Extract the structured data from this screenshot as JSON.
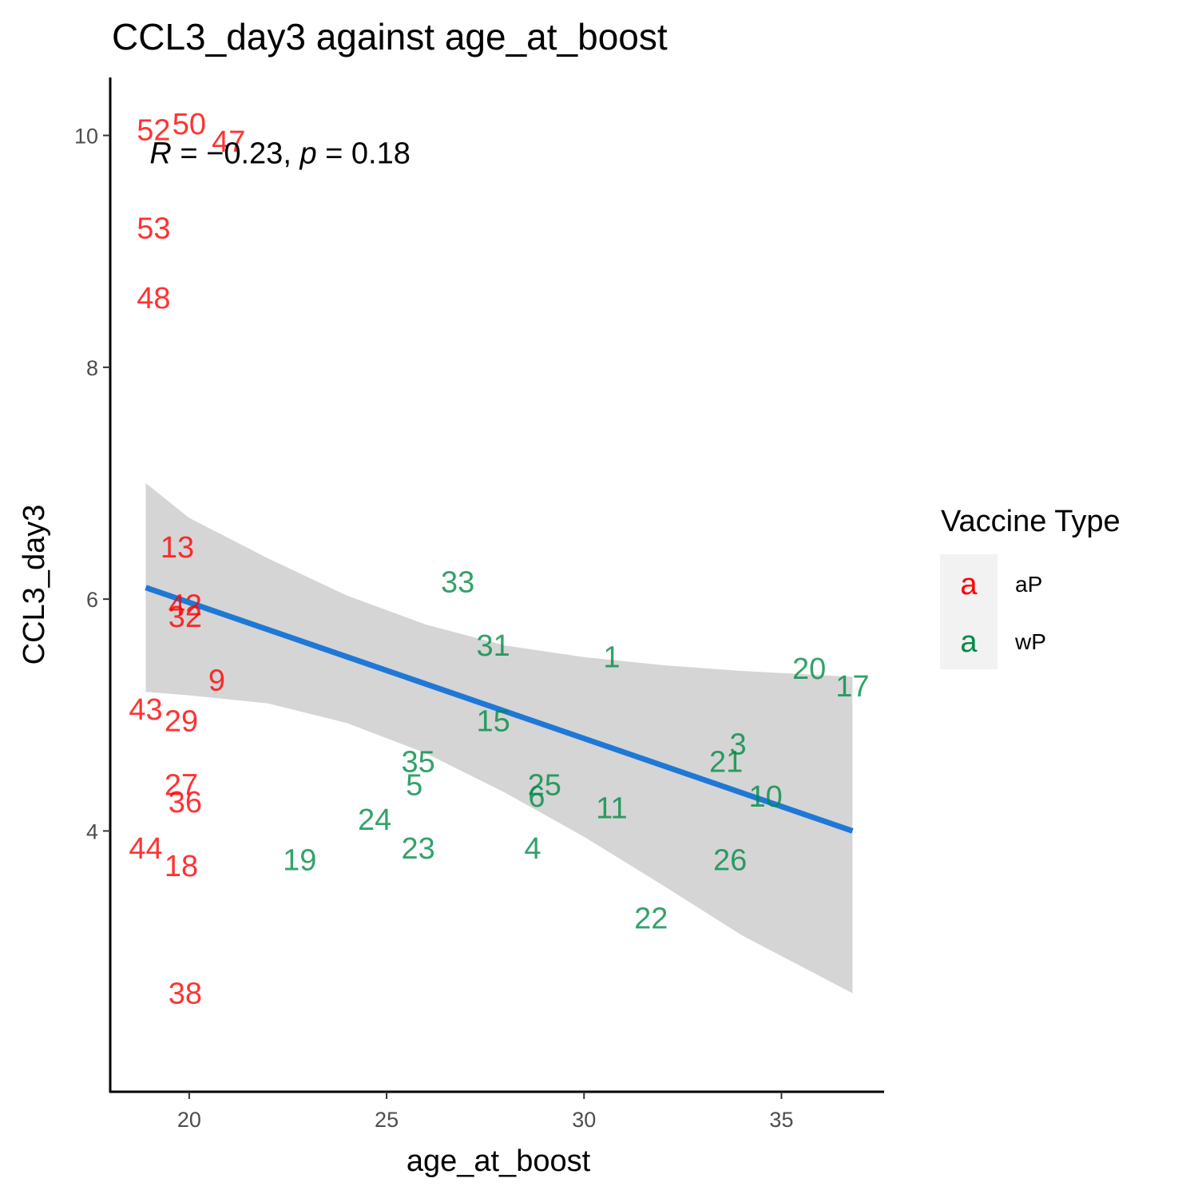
{
  "chart_data": {
    "type": "scatter",
    "title": "CCL3_day3 against age_at_boost",
    "xlabel": "age_at_boost",
    "ylabel": "CCL3_day3",
    "xlim": [
      18.0,
      37.6
    ],
    "ylim": [
      1.75,
      10.5
    ],
    "xticks": [
      20,
      25,
      30,
      35
    ],
    "yticks": [
      4,
      6,
      8,
      10
    ],
    "x_tick_labels": [
      "20",
      "25",
      "30",
      "35"
    ],
    "y_tick_labels": [
      "4",
      "6",
      "8",
      "10"
    ],
    "grid": false,
    "annotation": {
      "r_label": "R",
      "r_value": "−0.23",
      "p_label": "p",
      "p_value": "0.18",
      "x": 19.0,
      "y": 9.85
    },
    "legend": {
      "title": "Vaccine Type",
      "placement": "right",
      "key_glyph": "a",
      "entries": [
        {
          "label": "aP",
          "color": "#ff0000"
        },
        {
          "label": "wP",
          "color": "#008b45"
        }
      ]
    },
    "colors": {
      "aP": "#ff0000",
      "wP": "#008b45",
      "fit_line": "#1f78d6",
      "ribbon": "#d5d5d5"
    },
    "fit": {
      "x_start": 18.9,
      "y_start": 6.1,
      "x_end": 36.8,
      "y_end": 4.0,
      "ribbon_x": [
        18.9,
        20.0,
        22.0,
        24.0,
        26.0,
        28.0,
        30.0,
        32.0,
        34.0,
        36.8
      ],
      "ribbon_upper": [
        7.0,
        6.7,
        6.35,
        6.03,
        5.78,
        5.6,
        5.5,
        5.43,
        5.38,
        5.33
      ],
      "ribbon_lower": [
        5.2,
        5.17,
        5.1,
        4.93,
        4.67,
        4.33,
        3.95,
        3.53,
        3.1,
        2.6
      ]
    },
    "series": [
      {
        "name": "aP",
        "points": [
          {
            "label": "52",
            "x": 19.1,
            "y": 10.05
          },
          {
            "label": "50",
            "x": 20.0,
            "y": 10.1
          },
          {
            "label": "47",
            "x": 21.0,
            "y": 9.95
          },
          {
            "label": "53",
            "x": 19.1,
            "y": 9.2
          },
          {
            "label": "48",
            "x": 19.1,
            "y": 8.6
          },
          {
            "label": "13",
            "x": 19.7,
            "y": 6.45
          },
          {
            "label": "42",
            "x": 19.9,
            "y": 5.95
          },
          {
            "label": "32",
            "x": 19.9,
            "y": 5.85
          },
          {
            "label": "9",
            "x": 20.7,
            "y": 5.3
          },
          {
            "label": "43",
            "x": 18.9,
            "y": 5.05
          },
          {
            "label": "29",
            "x": 19.8,
            "y": 4.95
          },
          {
            "label": "27",
            "x": 19.8,
            "y": 4.4
          },
          {
            "label": "36",
            "x": 19.9,
            "y": 4.25
          },
          {
            "label": "44",
            "x": 18.9,
            "y": 3.85
          },
          {
            "label": "18",
            "x": 19.8,
            "y": 3.7
          },
          {
            "label": "38",
            "x": 19.9,
            "y": 2.6
          }
        ]
      },
      {
        "name": "wP",
        "points": [
          {
            "label": "33",
            "x": 26.8,
            "y": 6.15
          },
          {
            "label": "31",
            "x": 27.7,
            "y": 5.6
          },
          {
            "label": "1",
            "x": 30.7,
            "y": 5.5
          },
          {
            "label": "20",
            "x": 35.7,
            "y": 5.4
          },
          {
            "label": "17",
            "x": 36.8,
            "y": 5.25
          },
          {
            "label": "15",
            "x": 27.7,
            "y": 4.95
          },
          {
            "label": "3",
            "x": 33.9,
            "y": 4.75
          },
          {
            "label": "21",
            "x": 33.6,
            "y": 4.6
          },
          {
            "label": "35",
            "x": 25.8,
            "y": 4.6
          },
          {
            "label": "5",
            "x": 25.7,
            "y": 4.4
          },
          {
            "label": "25",
            "x": 29.0,
            "y": 4.4
          },
          {
            "label": "6",
            "x": 28.8,
            "y": 4.3
          },
          {
            "label": "10",
            "x": 34.6,
            "y": 4.3
          },
          {
            "label": "11",
            "x": 30.7,
            "y": 4.2
          },
          {
            "label": "24",
            "x": 24.7,
            "y": 4.1
          },
          {
            "label": "23",
            "x": 25.8,
            "y": 3.85
          },
          {
            "label": "4",
            "x": 28.7,
            "y": 3.85
          },
          {
            "label": "19",
            "x": 22.8,
            "y": 3.75
          },
          {
            "label": "26",
            "x": 33.7,
            "y": 3.75
          },
          {
            "label": "22",
            "x": 31.7,
            "y": 3.25
          }
        ]
      }
    ]
  }
}
